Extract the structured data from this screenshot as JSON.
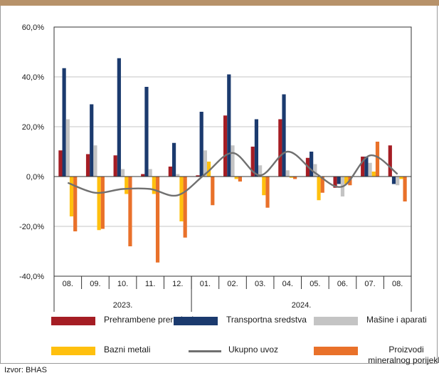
{
  "colors": {
    "top_band": "#b7926a",
    "axis": "#333333",
    "grid": "#c6c6c6",
    "series": [
      "#a51d24",
      "#1b3a6e",
      "#c4c4c4",
      "#ffc00e",
      "#707070",
      "#e9712a"
    ]
  },
  "chart_data": {
    "type": "bar",
    "categories": [
      "08.",
      "09.",
      "10.",
      "11.",
      "12.",
      "01.",
      "02.",
      "03.",
      "04.",
      "05.",
      "06.",
      "07.",
      "08."
    ],
    "year_groups": [
      {
        "label": "2023.",
        "count": 5
      },
      {
        "label": "2024.",
        "count": 8
      }
    ],
    "y_ticks": [
      "60,0%",
      "40,0%",
      "20,0%",
      "0,0%",
      "-20,0%",
      "-40,0%"
    ],
    "ylim": [
      -40,
      60
    ],
    "grid": true,
    "legend_position": "bottom",
    "series": [
      {
        "name": "Prehrambene prerađevine",
        "type": "bar",
        "values": [
          10.5,
          9,
          8.5,
          1,
          4,
          0.5,
          24.5,
          12,
          23,
          7.5,
          -4.5,
          8,
          12.5
        ]
      },
      {
        "name": "Transportna sredstva",
        "type": "bar",
        "values": [
          43.5,
          29,
          47.5,
          36,
          13.5,
          26,
          41,
          23,
          33,
          10,
          -3,
          8,
          -3
        ]
      },
      {
        "name": "Mašine i aparati",
        "type": "bar",
        "values": [
          23,
          12.5,
          3,
          3,
          1,
          10.5,
          12.5,
          4.5,
          2.5,
          5,
          -8,
          5.5,
          -3.5
        ]
      },
      {
        "name": "Bazni metali",
        "type": "bar",
        "values": [
          -16,
          -21.5,
          -7,
          -7,
          -18,
          6,
          -1,
          -7.5,
          -0.5,
          -9.5,
          -3,
          2,
          -1
        ]
      },
      {
        "name": "Ukupno uvoz",
        "type": "line",
        "values": [
          -2.5,
          -6.5,
          -5,
          -5,
          -7.5,
          1,
          9.5,
          0.5,
          10,
          1.5,
          -4,
          8.5,
          1
        ]
      },
      {
        "name": "Proizvodi mineralnog porijekla",
        "type": "bar",
        "values": [
          -22,
          -21,
          -28,
          -34.5,
          -24.5,
          -11.5,
          -2,
          -12.5,
          -1,
          -6.5,
          -3.5,
          14,
          -10
        ]
      }
    ]
  },
  "legend": [
    {
      "label": "Prehrambene prerađevine",
      "kind": "bar"
    },
    {
      "label": "Transportna sredstva",
      "kind": "bar"
    },
    {
      "label": "Mašine i aparati",
      "kind": "bar"
    },
    {
      "label": "Bazni metali",
      "kind": "bar"
    },
    {
      "label": "Ukupno uvoz",
      "kind": "line"
    },
    {
      "label": "Proizvodi mineralnog porijekla",
      "kind": "bar"
    }
  ],
  "source": "Izvor: BHAS"
}
